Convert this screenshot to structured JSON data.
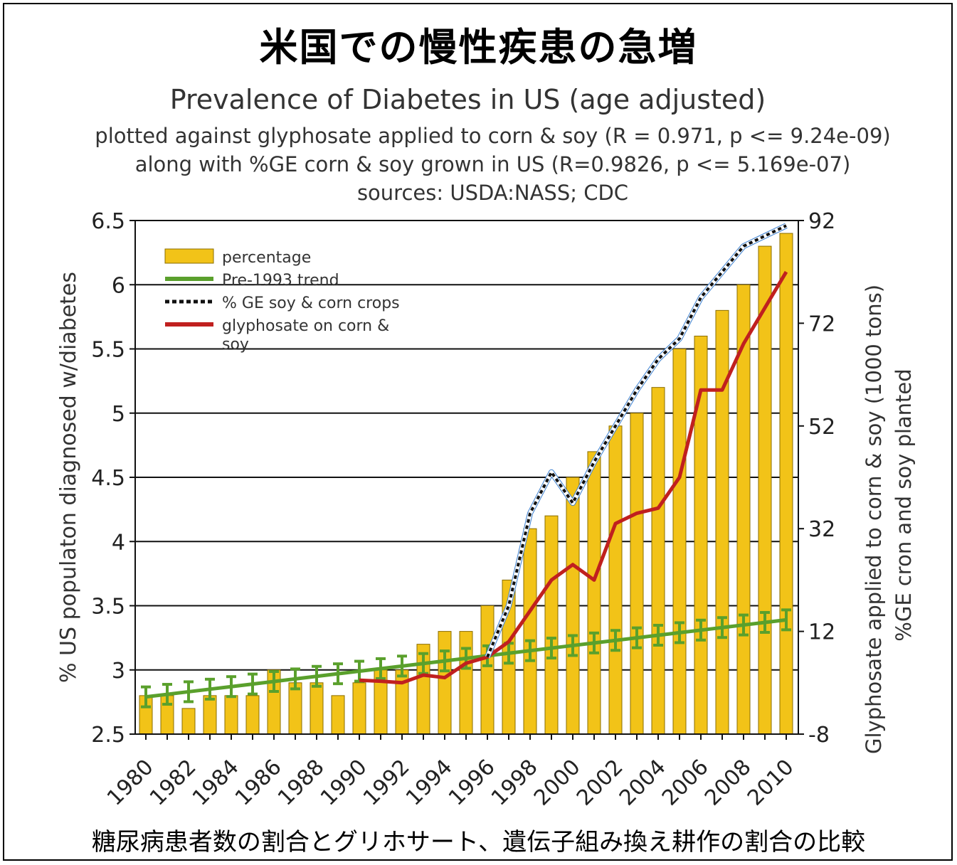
{
  "heading_ja": "米国での慢性疾患の急増",
  "footer_ja": "糖尿病患者数の割合とグリホサート、遺伝子組み換え耕作の割合の比較",
  "chart_data": {
    "type": "bar",
    "title": "Prevalence of Diabetes in US (age adjusted)",
    "subtitles": [
      "plotted against glyphosate applied to corn & soy (R = 0.971, p <= 9.24e-09)",
      "along with %GE corn & soy grown in US (R=0.9826, p <= 5.169e-07)",
      "sources: USDA:NASS; CDC"
    ],
    "ylabel": "% US populaton diagnosed w/diabetes",
    "y2label": [
      "Glyphosate applied to corn & soy (1000 tons)",
      "%GE cron and soy planted"
    ],
    "ylim": [
      2.5,
      6.5
    ],
    "y2lim": [
      -8,
      92
    ],
    "yticks": [
      "2.5",
      "3",
      "3.5",
      "4",
      "4.5",
      "5",
      "5.5",
      "6",
      "6.5"
    ],
    "y2ticks": [
      "-8",
      "12",
      "32",
      "52",
      "72",
      "92"
    ],
    "xticks": [
      "1980",
      "1982",
      "1984",
      "1986",
      "1988",
      "1990",
      "1992",
      "1994",
      "1996",
      "1998",
      "2000",
      "2002",
      "2004",
      "2006",
      "2008",
      "2010"
    ],
    "grid": true,
    "legend_placement": "top-left",
    "categories": [
      1980,
      1981,
      1982,
      1983,
      1984,
      1985,
      1986,
      1987,
      1988,
      1989,
      1990,
      1991,
      1992,
      1993,
      1994,
      1995,
      1996,
      1997,
      1998,
      1999,
      2000,
      2001,
      2002,
      2003,
      2004,
      2005,
      2006,
      2007,
      2008,
      2009,
      2010
    ],
    "series": [
      {
        "name": "percentage",
        "kind": "bar",
        "color": "#f2c318",
        "values": [
          2.8,
          2.8,
          2.7,
          2.8,
          2.8,
          2.8,
          3.0,
          2.9,
          2.9,
          2.8,
          2.9,
          3.0,
          3.0,
          3.2,
          3.3,
          3.3,
          3.5,
          3.7,
          4.1,
          4.2,
          4.5,
          4.7,
          4.9,
          5.0,
          5.2,
          5.5,
          5.6,
          5.8,
          6.0,
          6.3,
          6.4
        ]
      },
      {
        "name": "Pre-1993 trend",
        "kind": "line",
        "axis": "left",
        "color": "#5aa02c",
        "values": [
          2.79,
          2.81,
          2.83,
          2.85,
          2.87,
          2.89,
          2.91,
          2.93,
          2.95,
          2.97,
          2.99,
          3.01,
          3.03,
          3.05,
          3.07,
          3.09,
          3.11,
          3.13,
          3.15,
          3.17,
          3.19,
          3.21,
          3.23,
          3.25,
          3.27,
          3.29,
          3.31,
          3.33,
          3.35,
          3.37,
          3.39
        ]
      },
      {
        "name": "% GE soy & corn crops",
        "kind": "line",
        "axis": "right",
        "color": "#111111",
        "x": [
          1996,
          1997,
          1998,
          1999,
          2000,
          2001,
          2002,
          2003,
          2004,
          2005,
          2006,
          2007,
          2008,
          2009,
          2010
        ],
        "values": [
          7,
          17,
          35,
          43,
          37,
          45,
          52,
          59,
          65,
          69,
          77,
          82,
          87,
          89,
          91
        ]
      },
      {
        "name": "glyphosate on corn & soy",
        "kind": "line",
        "axis": "right",
        "color": "#c0201f",
        "x": [
          1990,
          1991,
          1992,
          1993,
          1994,
          1995,
          1996,
          1997,
          1998,
          1999,
          2000,
          2001,
          2002,
          2003,
          2004,
          2005,
          2006,
          2007,
          2008,
          2009,
          2010
        ],
        "values": [
          2.5,
          2.3,
          2,
          3.5,
          3,
          5.8,
          7,
          10,
          16,
          22,
          25,
          22,
          33,
          35,
          36,
          42,
          59,
          59,
          68,
          75,
          82
        ]
      }
    ]
  }
}
